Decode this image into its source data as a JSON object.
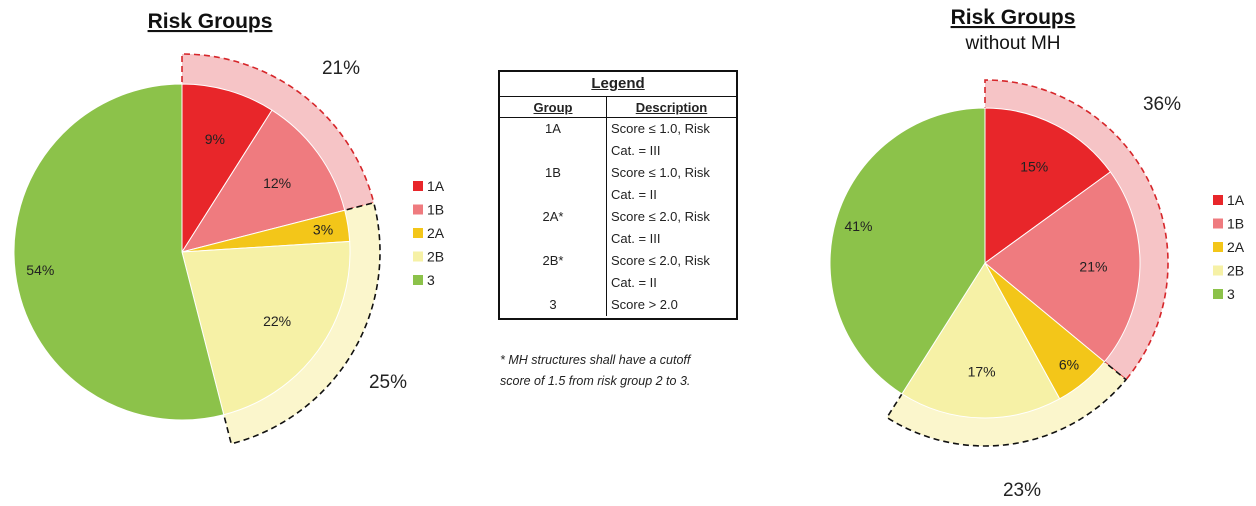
{
  "chart_data": [
    {
      "type": "pie",
      "title": "Risk Groups",
      "subtitle": "",
      "categories": [
        "1A",
        "1B",
        "2A",
        "2B",
        "3"
      ],
      "values": [
        9,
        12,
        3,
        22,
        54
      ],
      "labels": [
        "9%",
        "12%",
        "3%",
        "22%",
        "54%"
      ],
      "colors": [
        "#e8262a",
        "#ef7b7f",
        "#f3c619",
        "#f6f1a6",
        "#8cc24a"
      ],
      "group_annotations": [
        {
          "label": "21%",
          "members": [
            "1A",
            "1B"
          ],
          "color": "#f6c4c6",
          "border": "#d6262a"
        },
        {
          "label": "25%",
          "members": [
            "2A",
            "2B"
          ],
          "color": "#fbf6cc",
          "border": "#111111"
        }
      ],
      "legend": {
        "position": "right",
        "entries": [
          "1A",
          "1B",
          "2A",
          "2B",
          "3"
        ]
      }
    },
    {
      "type": "pie",
      "title": "Risk Groups",
      "subtitle": "without MH",
      "categories": [
        "1A",
        "1B",
        "2A",
        "2B",
        "3"
      ],
      "values": [
        15,
        21,
        6,
        17,
        41
      ],
      "labels": [
        "15%",
        "21%",
        "6%",
        "17%",
        "41%"
      ],
      "colors": [
        "#e8262a",
        "#ef7b7f",
        "#f3c619",
        "#f6f1a6",
        "#8cc24a"
      ],
      "group_annotations": [
        {
          "label": "36%",
          "members": [
            "1A",
            "1B"
          ],
          "color": "#f6c4c6",
          "border": "#d6262a"
        },
        {
          "label": "23%",
          "members": [
            "2A",
            "2B"
          ],
          "color": "#fbf6cc",
          "border": "#111111"
        }
      ],
      "legend": {
        "position": "right",
        "entries": [
          "1A",
          "1B",
          "2A",
          "2B",
          "3"
        ]
      }
    }
  ],
  "legend_table": {
    "title": "Legend",
    "headers": [
      "Group",
      "Description"
    ],
    "rows": [
      {
        "group": "1A",
        "line1": "Score ≤ 1.0, Risk",
        "line2": "Cat. = III"
      },
      {
        "group": "1B",
        "line1": "Score ≤ 1.0, Risk",
        "line2": "Cat. = II"
      },
      {
        "group": "2A*",
        "line1": "Score ≤ 2.0, Risk",
        "line2": "Cat. = III"
      },
      {
        "group": "2B*",
        "line1": "Score ≤ 2.0, Risk",
        "line2": "Cat. = II"
      },
      {
        "group": "3",
        "line1": "Score > 2.0",
        "line2": ""
      }
    ]
  },
  "footnote": "* MH structures shall have a cutoff score of 1.5 from risk group 2 to 3."
}
